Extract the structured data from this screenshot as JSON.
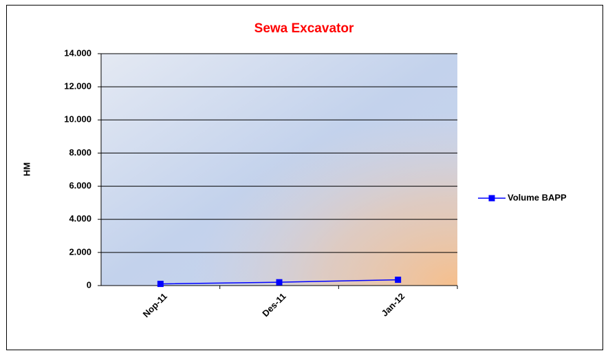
{
  "chart_data": {
    "type": "line",
    "title": "Sewa Excavator",
    "y_label": "HM",
    "categories": [
      "Nop-11",
      "Des-11",
      "Jan-12"
    ],
    "series": [
      {
        "name": "Volume BAPP",
        "color": "#0000ff",
        "values": [
          100,
          200,
          350
        ]
      }
    ],
    "ylim": [
      0,
      14000
    ],
    "yticks": [
      0,
      {
        "value": 2000,
        "label": "2.000"
      },
      {
        "value": 4000,
        "label": "4.000"
      },
      {
        "value": 6000,
        "label": "6.000"
      },
      {
        "value": 8000,
        "label": "8.000"
      },
      {
        "value": 10000,
        "label": "10.000"
      },
      {
        "value": 12000,
        "label": "12.000"
      },
      {
        "value": 14000,
        "label": "14.000"
      }
    ],
    "grid": true,
    "legend": "right"
  }
}
